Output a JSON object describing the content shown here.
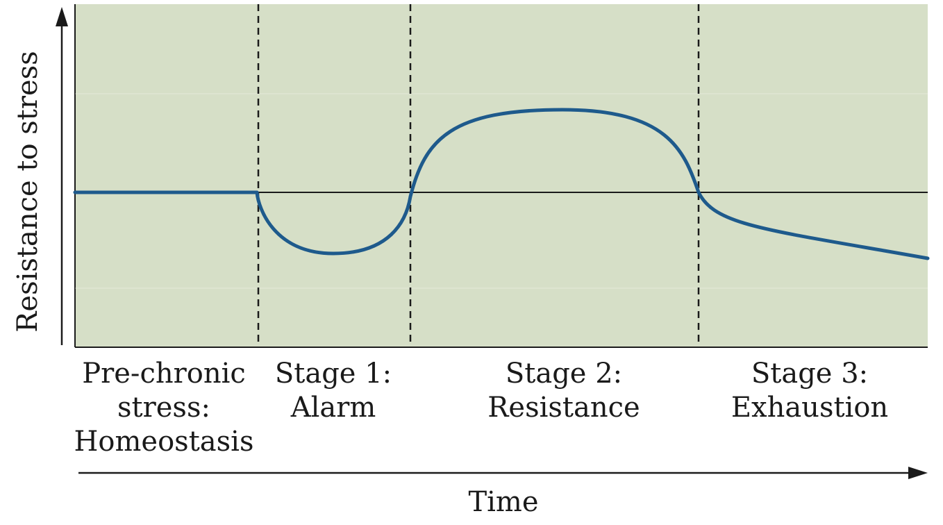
{
  "axes": {
    "y_label": "Resistance to stress",
    "x_label": "Time"
  },
  "stages": [
    {
      "lines": [
        "Pre-chronic",
        "stress:",
        "Homeostasis"
      ]
    },
    {
      "lines": [
        "Stage 1:",
        "Alarm"
      ]
    },
    {
      "lines": [
        "Stage 2:",
        "Resistance"
      ]
    },
    {
      "lines": [
        "Stage 3:",
        "Exhaustion"
      ]
    }
  ],
  "colors": {
    "plot_background": "#d6dfc7",
    "curve": "#1e5a8c",
    "baseline": "#1a1a1a",
    "divider": "#1a1a1a"
  }
}
